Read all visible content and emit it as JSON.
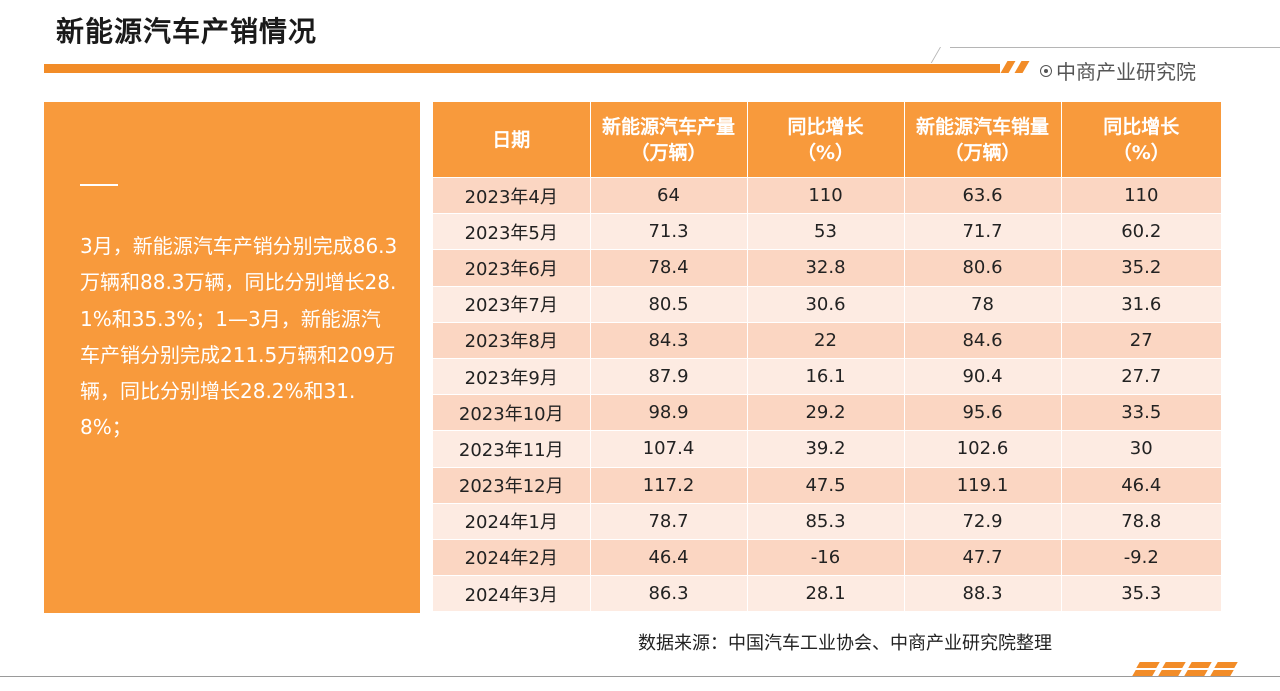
{
  "header": {
    "title": "新能源汽车产销情况",
    "brand": "中商产业研究院"
  },
  "summary": {
    "text": "3月，新能源汽车产销分别完成86.3万辆和88.3万辆，同比分别增长28.1%和35.3%；1—3月，新能源汽车产销分别完成211.5万辆和209万辆，同比分别增长28.2%和31.8%；"
  },
  "table": {
    "headers": [
      {
        "line1": "日期",
        "line2": ""
      },
      {
        "line1": "新能源汽车产量",
        "line2": "（万辆）"
      },
      {
        "line1": "同比增长",
        "line2": "（%）"
      },
      {
        "line1": "新能源汽车销量",
        "line2": "（万辆）"
      },
      {
        "line1": "同比增长",
        "line2": "（%）"
      }
    ],
    "rows": [
      [
        "2023年4月",
        "64",
        "110",
        "63.6",
        "110"
      ],
      [
        "2023年5月",
        "71.3",
        "53",
        "71.7",
        "60.2"
      ],
      [
        "2023年6月",
        "78.4",
        "32.8",
        "80.6",
        "35.2"
      ],
      [
        "2023年7月",
        "80.5",
        "30.6",
        "78",
        "31.6"
      ],
      [
        "2023年8月",
        "84.3",
        "22",
        "84.6",
        "27"
      ],
      [
        "2023年9月",
        "87.9",
        "16.1",
        "90.4",
        "27.7"
      ],
      [
        "2023年10月",
        "98.9",
        "29.2",
        "95.6",
        "33.5"
      ],
      [
        "2023年11月",
        "107.4",
        "39.2",
        "102.6",
        "30"
      ],
      [
        "2023年12月",
        "117.2",
        "47.5",
        "119.1",
        "46.4"
      ],
      [
        "2024年1月",
        "78.7",
        "85.3",
        "72.9",
        "78.8"
      ],
      [
        "2024年2月",
        "46.4",
        "-16",
        "47.7",
        "-9.2"
      ],
      [
        "2024年3月",
        "86.3",
        "28.1",
        "88.3",
        "35.3"
      ]
    ]
  },
  "footer": {
    "source": "数据来源：中国汽车工业协会、中商产业研究院整理"
  },
  "colors": {
    "accent": "#f28c28",
    "panel": "#f89a3c",
    "row_odd": "#fbd6c2",
    "row_even": "#fdebe2"
  }
}
